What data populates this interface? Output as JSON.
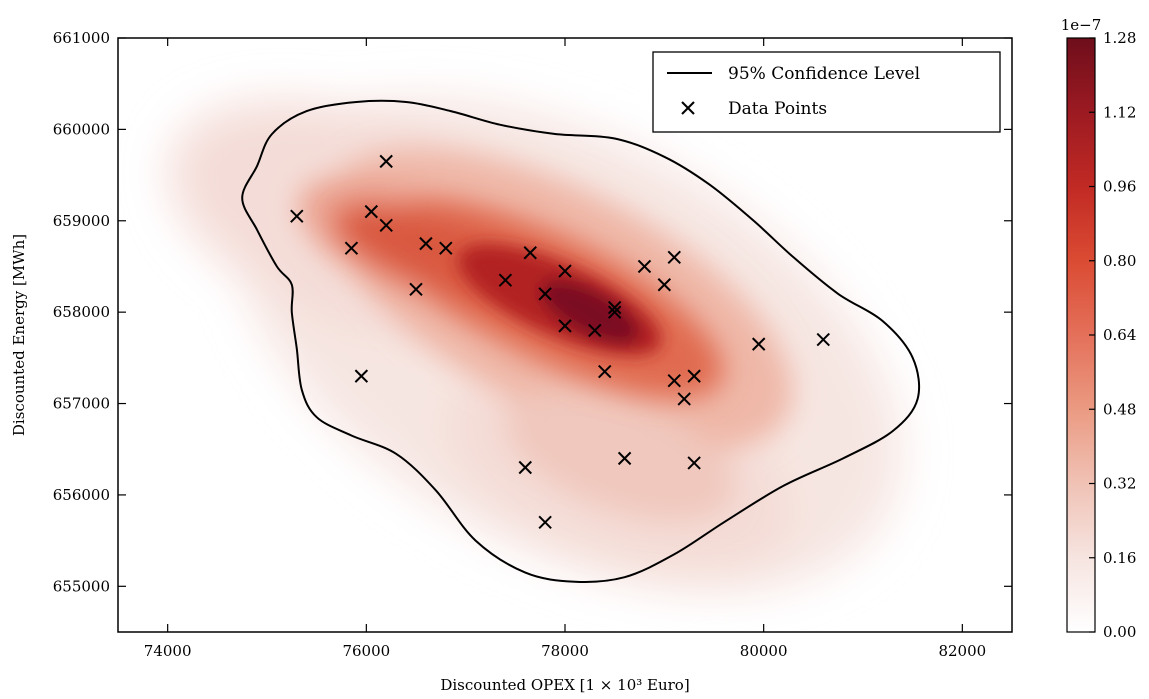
{
  "chart_data": {
    "type": "scatter",
    "title": "",
    "xlabel": "Discounted OPEX [1 × 10³ Euro]",
    "ylabel": "Discounted Energy [MWh]",
    "xlim": [
      73500,
      82500
    ],
    "ylim": [
      654500,
      661000
    ],
    "xticks": [
      74000,
      76000,
      78000,
      80000,
      82000
    ],
    "yticks": [
      655000,
      656000,
      657000,
      658000,
      659000,
      660000,
      661000
    ],
    "grid": false,
    "legend": {
      "position": "top-right",
      "entries": [
        {
          "label": "95% Confidence Level",
          "marker": "line"
        },
        {
          "label": "Data Points",
          "marker": "x"
        }
      ]
    },
    "density_background": "kernel density estimate, white to dark red",
    "colorbar": {
      "exponent_label": "1e−7",
      "min": 0.0,
      "max": 1.28,
      "ticks": [
        "0.00",
        "0.16",
        "0.32",
        "0.48",
        "0.64",
        "0.80",
        "0.96",
        "1.12",
        "1.28"
      ],
      "colors": [
        "#ffffff",
        "#f6e4e0",
        "#f0c2b5",
        "#eb9a82",
        "#e4705a",
        "#db4b33",
        "#c12a24",
        "#9c1a22",
        "#6e0e1b"
      ]
    },
    "confidence_contour": [
      [
        74900,
        659600
      ],
      [
        75050,
        659950
      ],
      [
        75400,
        660200
      ],
      [
        75900,
        660300
      ],
      [
        76400,
        660300
      ],
      [
        76850,
        660200
      ],
      [
        77350,
        660050
      ],
      [
        77900,
        659950
      ],
      [
        78500,
        659900
      ],
      [
        79000,
        659700
      ],
      [
        79450,
        659400
      ],
      [
        79900,
        659000
      ],
      [
        80300,
        658600
      ],
      [
        80750,
        658200
      ],
      [
        81200,
        657900
      ],
      [
        81500,
        657500
      ],
      [
        81550,
        657050
      ],
      [
        81300,
        656700
      ],
      [
        80800,
        656400
      ],
      [
        80200,
        656100
      ],
      [
        79600,
        655700
      ],
      [
        79100,
        655350
      ],
      [
        78600,
        655100
      ],
      [
        78100,
        655050
      ],
      [
        77600,
        655150
      ],
      [
        77100,
        655500
      ],
      [
        76700,
        656050
      ],
      [
        76300,
        656450
      ],
      [
        75850,
        656650
      ],
      [
        75500,
        656850
      ],
      [
        75350,
        657150
      ],
      [
        75300,
        657600
      ],
      [
        75250,
        658000
      ],
      [
        75250,
        658300
      ],
      [
        75100,
        658500
      ],
      [
        74900,
        658900
      ],
      [
        74750,
        659250
      ]
    ],
    "points": [
      {
        "x": 75300,
        "y": 659050
      },
      {
        "x": 76200,
        "y": 659650
      },
      {
        "x": 76050,
        "y": 659100
      },
      {
        "x": 76200,
        "y": 658950
      },
      {
        "x": 75850,
        "y": 658700
      },
      {
        "x": 76600,
        "y": 658750
      },
      {
        "x": 76800,
        "y": 658700
      },
      {
        "x": 76500,
        "y": 658250
      },
      {
        "x": 75950,
        "y": 657300
      },
      {
        "x": 77400,
        "y": 658350
      },
      {
        "x": 77650,
        "y": 658650
      },
      {
        "x": 78000,
        "y": 658450
      },
      {
        "x": 77800,
        "y": 658200
      },
      {
        "x": 78000,
        "y": 657850
      },
      {
        "x": 78300,
        "y": 657800
      },
      {
        "x": 78500,
        "y": 658050
      },
      {
        "x": 78500,
        "y": 658000
      },
      {
        "x": 78400,
        "y": 657350
      },
      {
        "x": 78800,
        "y": 658500
      },
      {
        "x": 79100,
        "y": 658600
      },
      {
        "x": 79000,
        "y": 658300
      },
      {
        "x": 79100,
        "y": 657250
      },
      {
        "x": 79300,
        "y": 657300
      },
      {
        "x": 79200,
        "y": 657050
      },
      {
        "x": 79950,
        "y": 657650
      },
      {
        "x": 80600,
        "y": 657700
      },
      {
        "x": 77600,
        "y": 656300
      },
      {
        "x": 78600,
        "y": 656400
      },
      {
        "x": 79300,
        "y": 656350
      },
      {
        "x": 77800,
        "y": 655700
      }
    ]
  }
}
